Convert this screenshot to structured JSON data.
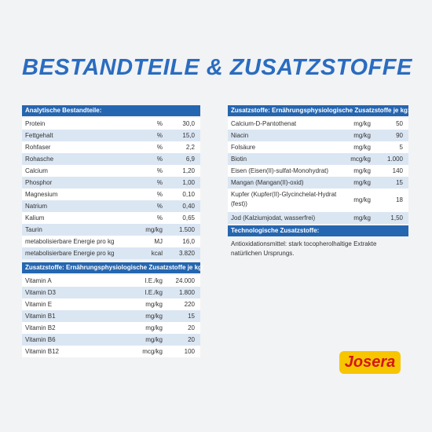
{
  "title": "BESTANDTEILE & ZUSATZSTOFFE",
  "left_table": {
    "header": "Analytische Bestandteile:",
    "rows": [
      [
        "Protein",
        "%",
        "30,0"
      ],
      [
        "Fettgehalt",
        "%",
        "15,0"
      ],
      [
        "Rohfaser",
        "%",
        "2,2"
      ],
      [
        "Rohasche",
        "%",
        "6,9"
      ],
      [
        "Calcium",
        "%",
        "1,20"
      ],
      [
        "Phosphor",
        "%",
        "1,00"
      ],
      [
        "Magnesium",
        "%",
        "0,10"
      ],
      [
        "Natrium",
        "%",
        "0,40"
      ],
      [
        "Kalium",
        "%",
        "0,65"
      ],
      [
        "Taurin",
        "mg/kg",
        "1.500"
      ],
      [
        "metabolisierbare Energie pro kg",
        "MJ",
        "16,0"
      ],
      [
        "metabolisierbare Energie pro kg",
        "kcal",
        "3.820"
      ]
    ],
    "header2": "Zusatzstoffe: Ernährungsphysiologische Zusatzstoffe je kg:",
    "rows2": [
      [
        "Vitamin A",
        "I.E./kg",
        "24.000"
      ],
      [
        "Vitamin D3",
        "I.E./kg",
        "1.800"
      ],
      [
        "Vitamin E",
        "mg/kg",
        "220"
      ],
      [
        "Vitamin B1",
        "mg/kg",
        "15"
      ],
      [
        "Vitamin B2",
        "mg/kg",
        "20"
      ],
      [
        "Vitamin B6",
        "mg/kg",
        "20"
      ],
      [
        "Vitamin B12",
        "mcg/kg",
        "100"
      ]
    ]
  },
  "right_table": {
    "header": "Zusatzstoffe: Ernährungsphysiologische Zusatzstoffe je kg:",
    "rows": [
      [
        [
          "Calcium-D-Pantothenat"
        ],
        "mg/kg",
        "50"
      ],
      [
        [
          "Niacin"
        ],
        "mg/kg",
        "90"
      ],
      [
        [
          "Folsäure"
        ],
        "mg/kg",
        "5"
      ],
      [
        [
          "Biotin"
        ],
        "mcg/kg",
        "1.000"
      ],
      [
        [
          "Eisen (Eisen(II)-sulfat-Monohydrat)"
        ],
        "mg/kg",
        "140"
      ],
      [
        [
          "Mangan (Mangan(II)-oxid)"
        ],
        "mg/kg",
        "15"
      ],
      [
        [
          "Kupfer (Kupfer(II)-Glycinchelat-Hydrat",
          "(fest))"
        ],
        "mg/kg",
        "18"
      ],
      [
        [
          "Jod (Kalziumjodat, wasserfrei)"
        ],
        "mg/kg",
        "1,50"
      ]
    ]
  },
  "tech": {
    "header": "Technologische Zusatzstoffe:",
    "lines": [
      "Antioxidationsmittel: stark tocopherolhaltige Extrakte",
      "natürlichen Ursprungs."
    ]
  },
  "logo": "Josera"
}
